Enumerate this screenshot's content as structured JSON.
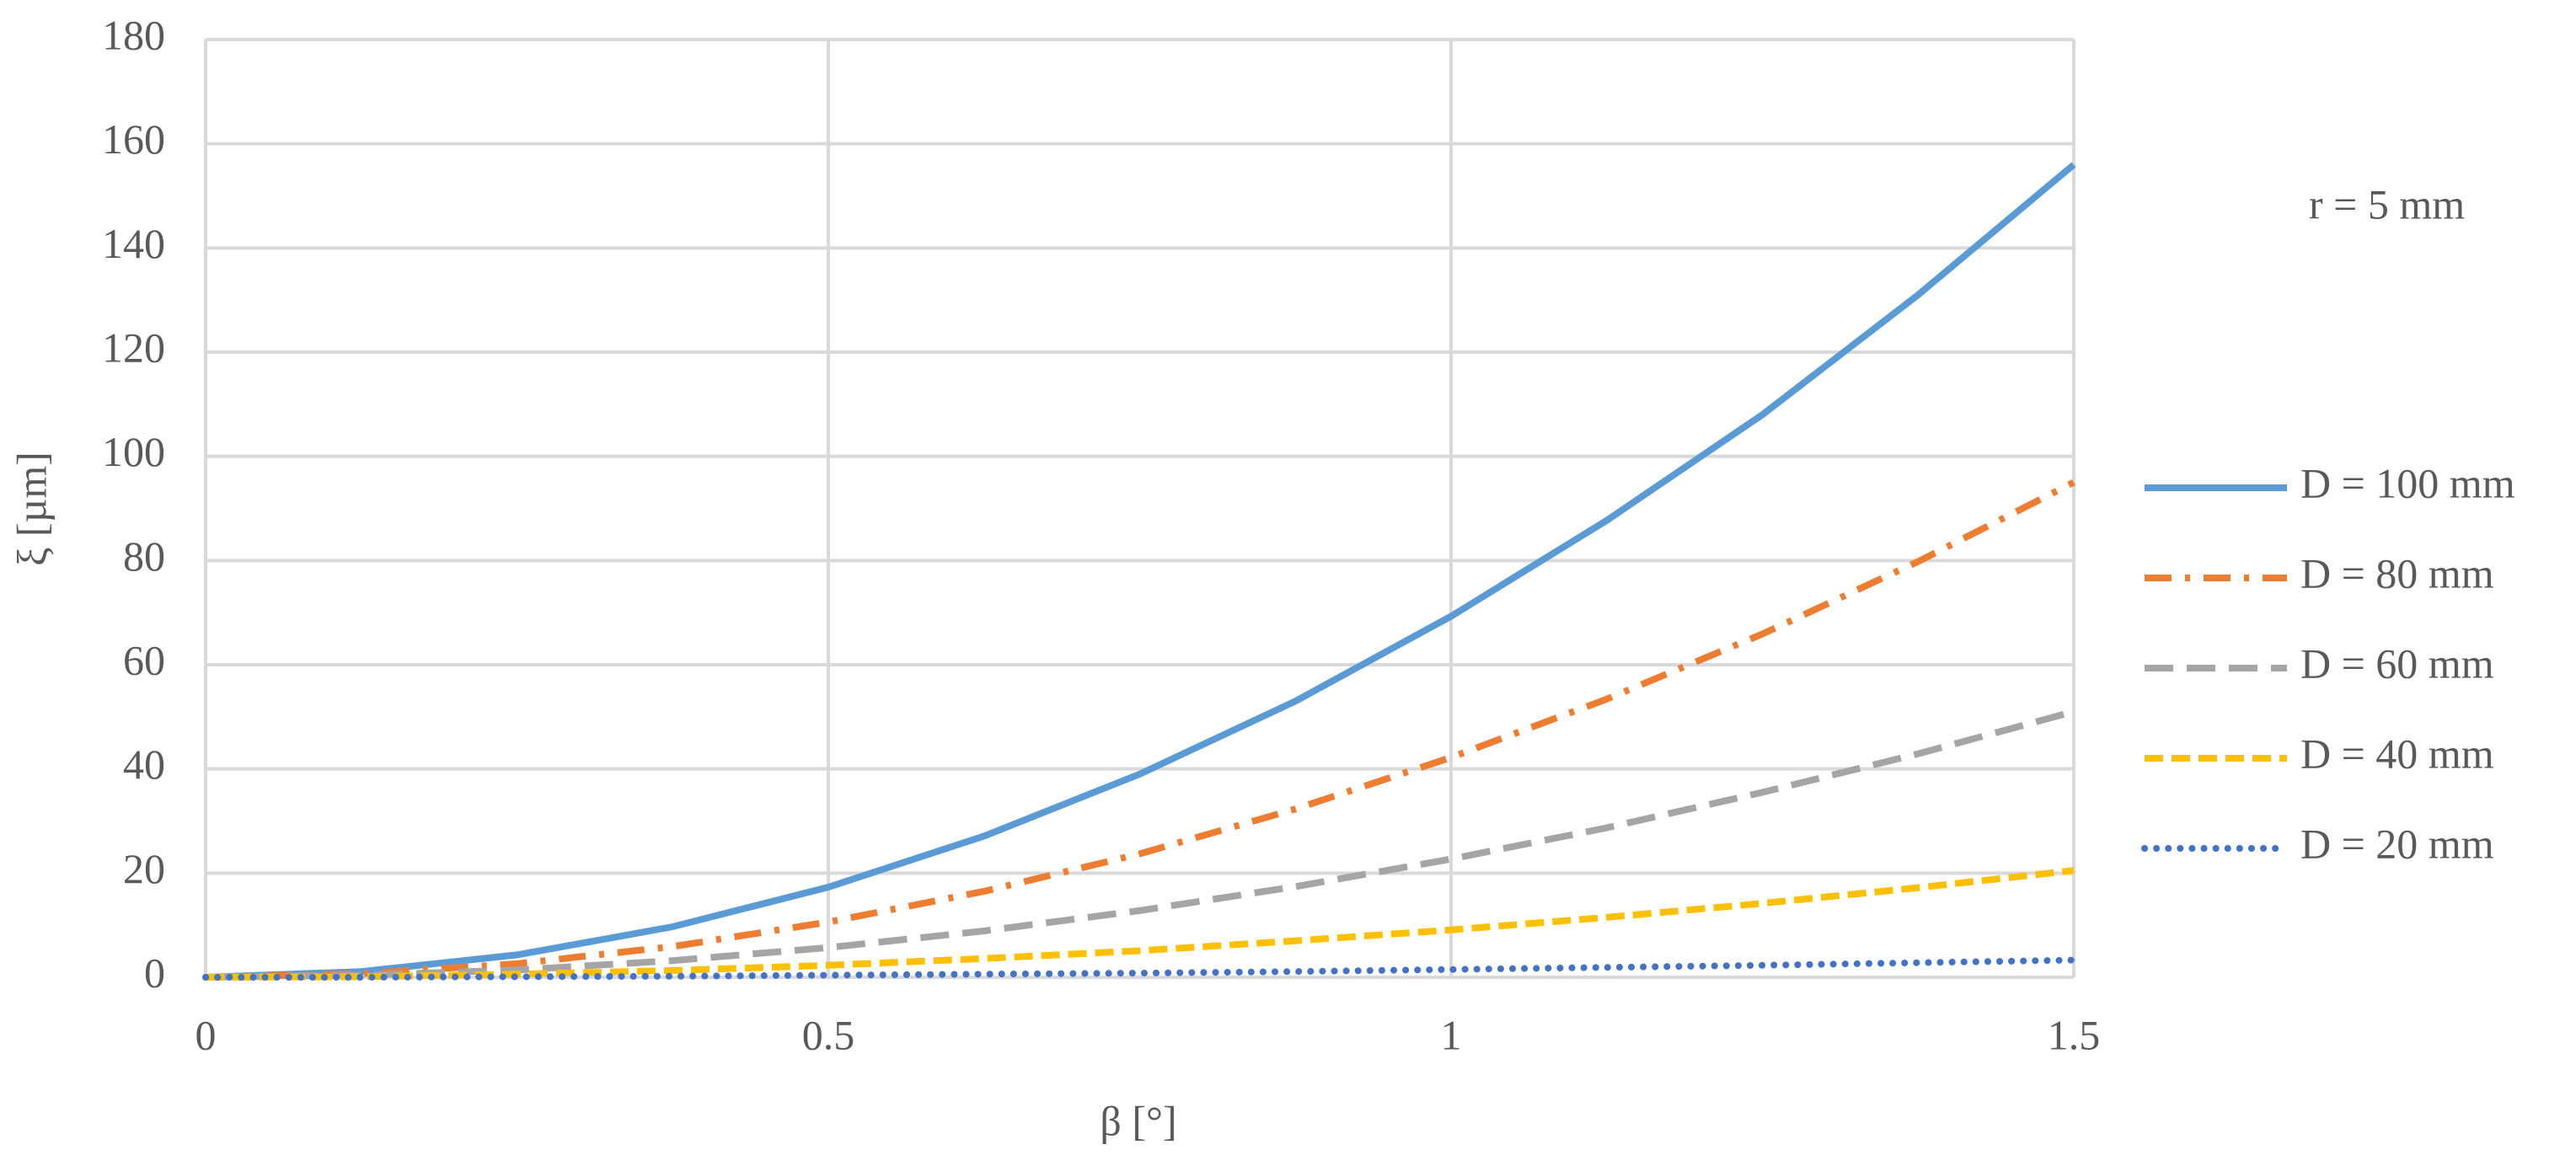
{
  "chart_data": {
    "type": "line",
    "x_label": "β [°]",
    "y_label": "ξ [µm]",
    "annotation": "r = 5 mm",
    "x": [
      0,
      0.125,
      0.25,
      0.375,
      0.5,
      0.625,
      0.75,
      0.875,
      1,
      1.125,
      1.25,
      1.375,
      1.5
    ],
    "series": [
      {
        "name": "D = 100 mm",
        "color": "#5b9bd5",
        "style": "solid",
        "values": [
          0,
          1.1,
          4.3,
          9.7,
          17.3,
          27.1,
          39,
          53,
          69.3,
          87.7,
          108,
          131,
          156
        ]
      },
      {
        "name": "D = 80 mm",
        "color": "#ed7d31",
        "style": "dashdot",
        "values": [
          0,
          0.7,
          2.6,
          5.9,
          10.6,
          16.5,
          23.7,
          32.3,
          42.2,
          53.4,
          65.9,
          79.8,
          95
        ]
      },
      {
        "name": "D = 60 mm",
        "color": "#a5a5a5",
        "style": "dash",
        "values": [
          0,
          0.4,
          1.4,
          3.2,
          5.7,
          8.9,
          12.8,
          17.4,
          22.7,
          28.7,
          35.5,
          42.9,
          51
        ]
      },
      {
        "name": "D = 40 mm",
        "color": "#ffc000",
        "style": "shortdash",
        "values": [
          0,
          0.1,
          0.6,
          1.3,
          2.3,
          3.6,
          5.1,
          7,
          9.1,
          11.5,
          14.2,
          17.2,
          20.5
        ]
      },
      {
        "name": "D = 20 mm",
        "color": "#4472c4",
        "style": "dot",
        "values": [
          0,
          0,
          0.1,
          0.2,
          0.4,
          0.6,
          0.8,
          1.1,
          1.5,
          1.9,
          2.3,
          2.8,
          3.3
        ]
      }
    ],
    "xlim": [
      0,
      1.5
    ],
    "xticks": [
      0,
      0.5,
      1,
      1.5
    ],
    "ylim": [
      0,
      180
    ],
    "yticks": [
      0,
      20,
      40,
      60,
      80,
      100,
      120,
      140,
      160,
      180
    ],
    "grid": true,
    "legend": "right"
  }
}
